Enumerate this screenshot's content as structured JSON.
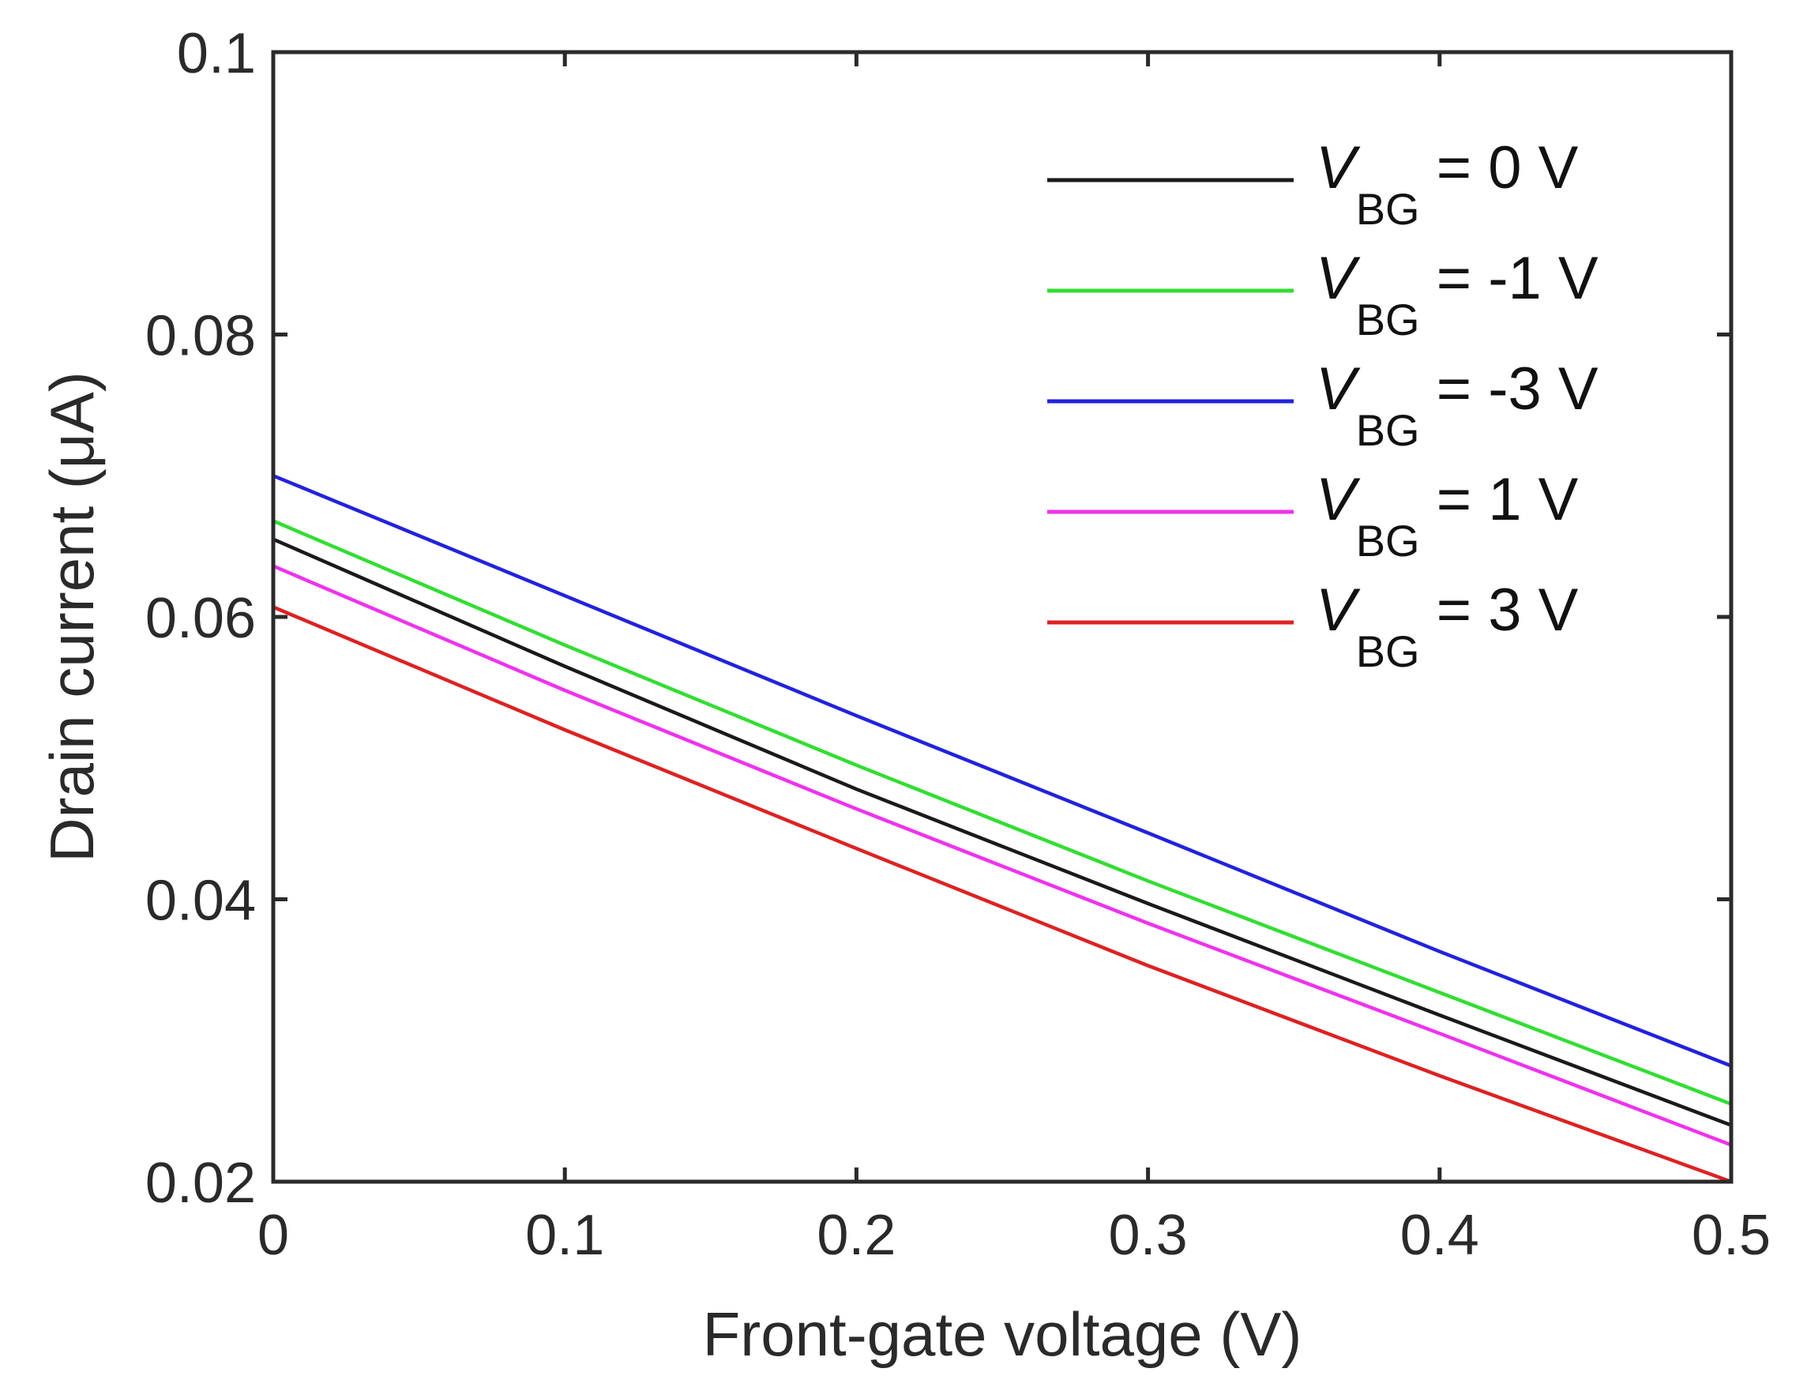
{
  "chart_data": {
    "type": "line",
    "title": "",
    "xlabel": "Front-gate voltage (V)",
    "ylabel": "Drain current (μA)",
    "xlim": [
      0,
      0.5
    ],
    "ylim": [
      0.02,
      0.1
    ],
    "xticks": [
      0,
      0.1,
      0.2,
      0.3,
      0.4,
      0.5
    ],
    "xtick_labels": [
      "0",
      "0.1",
      "0.2",
      "0.3",
      "0.4",
      "0.5"
    ],
    "yticks": [
      0.02,
      0.04,
      0.06,
      0.08,
      0.1
    ],
    "ytick_labels": [
      "0.02",
      "0.04",
      "0.06",
      "0.08",
      "0.1"
    ],
    "grid": false,
    "legend_position": "top-right",
    "x": [
      0,
      0.1,
      0.2,
      0.3,
      0.4,
      0.5
    ],
    "series": [
      {
        "symbol": "V",
        "subscript": "BG",
        "rest": " = 0 V",
        "color": "#1a1a1a",
        "values": [
          0.0655,
          0.0565,
          0.0478,
          0.0397,
          0.0318,
          0.024
        ]
      },
      {
        "symbol": "V",
        "subscript": "BG",
        "rest": " = -1 V",
        "color": "#33dd33",
        "values": [
          0.0668,
          0.058,
          0.0495,
          0.0413,
          0.0334,
          0.0255
        ]
      },
      {
        "symbol": "V",
        "subscript": "BG",
        "rest": " = -3 V",
        "color": "#2222dd",
        "values": [
          0.07,
          0.0615,
          0.053,
          0.0447,
          0.0363,
          0.0282
        ]
      },
      {
        "symbol": "V",
        "subscript": "BG",
        "rest": " = 1 V",
        "color": "#ee33ee",
        "values": [
          0.0636,
          0.0548,
          0.0464,
          0.0383,
          0.0305,
          0.0226
        ]
      },
      {
        "symbol": "V",
        "subscript": "BG",
        "rest": " = 3 V",
        "color": "#dd2222",
        "values": [
          0.0607,
          0.052,
          0.0436,
          0.0353,
          0.0275,
          0.02
        ]
      }
    ]
  }
}
